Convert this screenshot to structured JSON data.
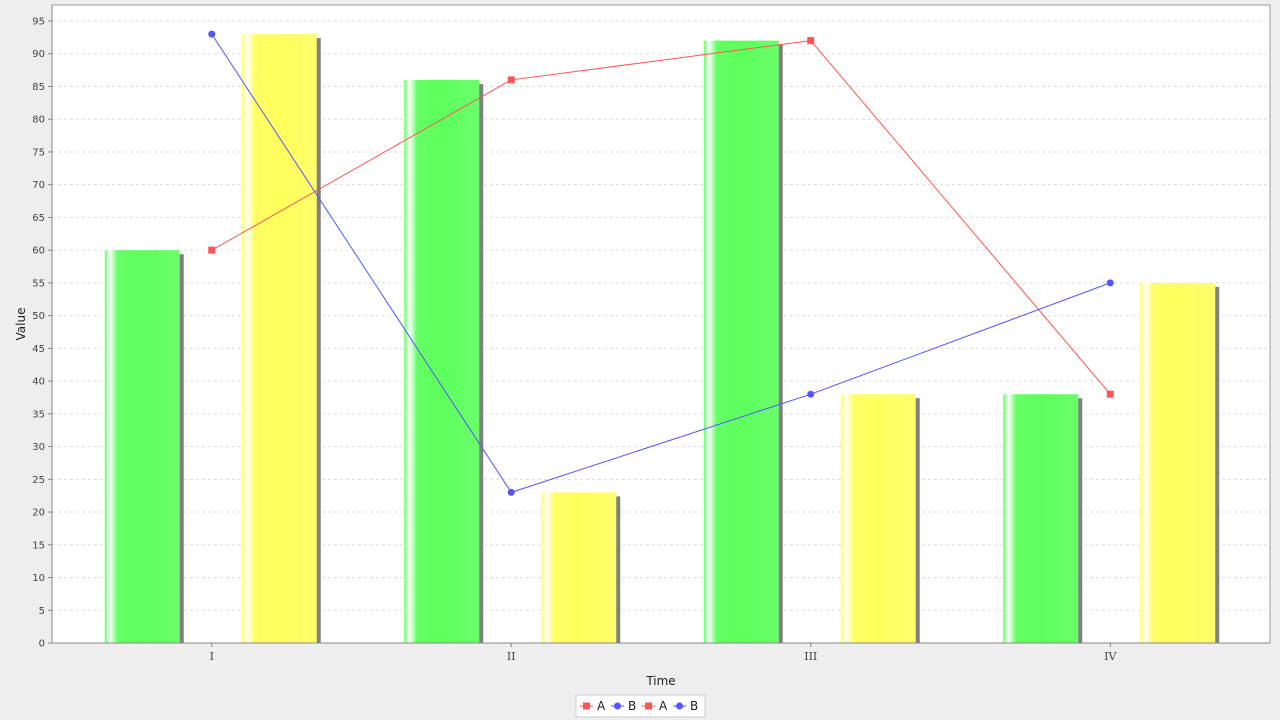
{
  "chart_data": {
    "type": "bar",
    "categories": [
      "I",
      "II",
      "III",
      "IV"
    ],
    "xlabel": "Time",
    "ylabel": "Value",
    "ylim": [
      0,
      95
    ],
    "ytick_step": 5,
    "grid": true,
    "legend_position": "bottom",
    "bar_series": [
      {
        "name": "A",
        "color": "#66ff66",
        "values": [
          60,
          86,
          92,
          38
        ]
      },
      {
        "name": "B",
        "color": "#ffff66",
        "values": [
          93,
          23,
          38,
          55
        ]
      }
    ],
    "line_series": [
      {
        "name": "A",
        "color": "#ff5555",
        "marker": "square",
        "values": [
          60,
          86,
          92,
          38
        ]
      },
      {
        "name": "B",
        "color": "#5555ff",
        "marker": "circle",
        "values": [
          93,
          23,
          38,
          55
        ]
      }
    ],
    "legend": [
      {
        "label": "A",
        "color": "#ff5555",
        "marker": "square"
      },
      {
        "label": "B",
        "color": "#5555ff",
        "marker": "circle"
      },
      {
        "label": "A",
        "color": "#ff5555",
        "marker": "square"
      },
      {
        "label": "B",
        "color": "#5555ff",
        "marker": "circle"
      }
    ]
  }
}
